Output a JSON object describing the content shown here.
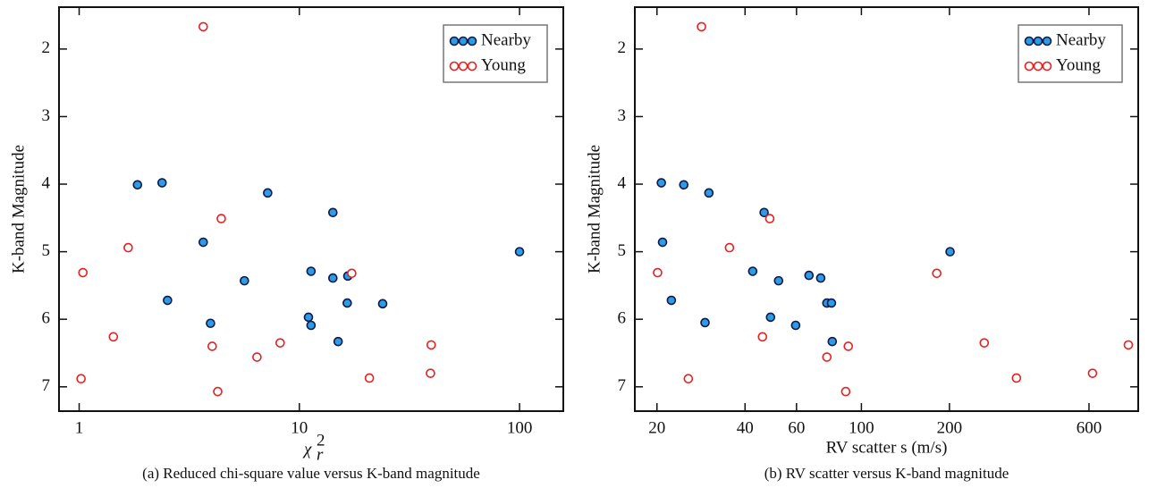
{
  "chart_data": [
    {
      "type": "scatter",
      "caption": "(a)  Reduced chi-square value versus K-band magnitude",
      "xlabel": {
        "symbol": "χ",
        "subscript": "r",
        "superscript": "2"
      },
      "ylabel": "K-band Magnitude",
      "xscale": "log",
      "xlim": [
        0.81,
        158
      ],
      "xticks": [
        1,
        10,
        100
      ],
      "ylim": [
        1.38,
        7.36
      ],
      "y_inverted": true,
      "yticks": [
        2,
        3,
        4,
        5,
        6,
        7
      ],
      "legend": "upper right",
      "series": [
        {
          "name": "Nearby",
          "facecolor": "#2e9be6",
          "edgecolor": "#0d1b4a",
          "x": [
            1.84,
            2.38,
            7.18,
            14.2,
            3.66,
            100,
            11.3,
            14.2,
            16.6,
            5.63,
            2.52,
            16.5,
            23.9,
            11.0,
            11.3,
            3.95,
            15.0
          ],
          "y": [
            4.01,
            3.98,
            4.13,
            4.42,
            4.86,
            5.0,
            5.29,
            5.39,
            5.36,
            5.43,
            5.72,
            5.76,
            5.77,
            5.97,
            6.09,
            6.06,
            6.33
          ]
        },
        {
          "name": "Young",
          "facecolor": "#ffffff",
          "edgecolor": "#e82020",
          "x": [
            3.66,
            4.42,
            1.67,
            1.04,
            17.3,
            1.43,
            4.02,
            8.18,
            39.7,
            6.42,
            1.02,
            20.8,
            39.4,
            4.26
          ],
          "y": [
            1.67,
            4.51,
            4.94,
            5.31,
            5.32,
            6.26,
            6.4,
            6.35,
            6.38,
            6.56,
            6.88,
            6.87,
            6.8,
            7.07
          ]
        }
      ]
    },
    {
      "type": "scatter",
      "caption": "(b)  RV scatter versus K-band magnitude",
      "xlabel": "RV scatter s (m/s)",
      "ylabel": "K-band Magnitude",
      "xscale": "log",
      "xlim": [
        16.8,
        884
      ],
      "xticks": [
        20,
        40,
        60,
        100,
        200,
        600
      ],
      "ylim": [
        1.38,
        7.36
      ],
      "y_inverted": true,
      "yticks": [
        2,
        3,
        4,
        5,
        6,
        7
      ],
      "legend": "upper right",
      "series": [
        {
          "name": "Nearby",
          "facecolor": "#2e9be6",
          "edgecolor": "#0d1b4a",
          "x": [
            20.7,
            24.7,
            30.1,
            46.5,
            20.9,
            201,
            42.5,
            66.2,
            72.6,
            52.1,
            22.4,
            76.2,
            79.0,
            48.9,
            29.2,
            59.6,
            79.5
          ],
          "y": [
            3.98,
            4.01,
            4.13,
            4.42,
            4.86,
            5.0,
            5.29,
            5.35,
            5.39,
            5.43,
            5.72,
            5.76,
            5.76,
            5.97,
            6.05,
            6.09,
            6.33
          ]
        },
        {
          "name": "Young",
          "facecolor": "#ffffff",
          "edgecolor": "#e82020",
          "x": [
            28.4,
            48.6,
            35.4,
            20.1,
            181,
            45.9,
            90.2,
            263,
            818,
            76.2,
            25.6,
            339,
            617,
            88.4
          ],
          "y": [
            1.67,
            4.51,
            4.94,
            5.31,
            5.32,
            6.26,
            6.4,
            6.35,
            6.38,
            6.56,
            6.88,
            6.87,
            6.8,
            7.07
          ]
        }
      ]
    }
  ]
}
